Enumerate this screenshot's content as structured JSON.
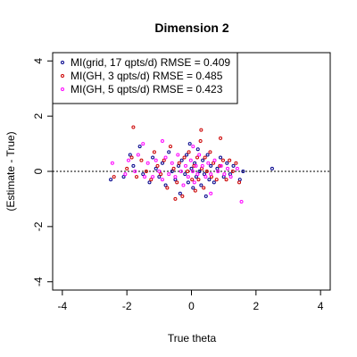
{
  "chart_data": {
    "type": "scatter",
    "title": "Dimension 2",
    "xlabel": "True theta",
    "ylabel": "(Estimate - True)",
    "xlim": [
      -4.3,
      4.3
    ],
    "ylim": [
      -4.3,
      4.3
    ],
    "xticks": [
      -4,
      -2,
      0,
      2,
      4
    ],
    "yticks": [
      -4,
      -2,
      0,
      2,
      4
    ],
    "grid": false,
    "legend_position": "top-left",
    "reference_line": {
      "y": 0,
      "style": "dotted"
    },
    "series": [
      {
        "name": "MI(grid, 17 qpts/d) RMSE = 0.409",
        "color": "#00008b",
        "points": [
          [
            -2.5,
            -0.3
          ],
          [
            -2.1,
            -0.2
          ],
          [
            -1.9,
            0.6
          ],
          [
            -1.8,
            0.2
          ],
          [
            -1.6,
            0.9
          ],
          [
            -1.5,
            -0.1
          ],
          [
            -1.3,
            -0.4
          ],
          [
            -1.2,
            0.5
          ],
          [
            -1.1,
            0.1
          ],
          [
            -1.0,
            -0.2
          ],
          [
            -0.9,
            0.3
          ],
          [
            -0.8,
            -0.5
          ],
          [
            -0.7,
            0.7
          ],
          [
            -0.6,
            0.0
          ],
          [
            -0.5,
            -0.3
          ],
          [
            -0.4,
            0.2
          ],
          [
            -0.35,
            -0.8
          ],
          [
            -0.3,
            0.4
          ],
          [
            -0.2,
            -0.1
          ],
          [
            -0.15,
            0.6
          ],
          [
            -0.1,
            -0.4
          ],
          [
            0.0,
            0.1
          ],
          [
            0.05,
            -0.6
          ],
          [
            0.1,
            0.3
          ],
          [
            0.15,
            -0.2
          ],
          [
            0.2,
            0.8
          ],
          [
            0.25,
            0.0
          ],
          [
            0.3,
            -0.5
          ],
          [
            0.35,
            0.4
          ],
          [
            0.4,
            -0.1
          ],
          [
            0.5,
            0.6
          ],
          [
            0.55,
            -0.3
          ],
          [
            0.6,
            0.2
          ],
          [
            0.7,
            -0.4
          ],
          [
            0.8,
            0.1
          ],
          [
            0.9,
            0.5
          ],
          [
            1.0,
            -0.2
          ],
          [
            1.1,
            0.3
          ],
          [
            1.2,
            -0.1
          ],
          [
            1.3,
            0.2
          ],
          [
            1.5,
            -0.3
          ],
          [
            1.6,
            0.0
          ],
          [
            2.5,
            0.1
          ],
          [
            -0.05,
            1.0
          ],
          [
            0.45,
            -0.9
          ]
        ]
      },
      {
        "name": "MI(GH, 3 qpts/d) RMSE = 0.485",
        "color": "#cc0000",
        "points": [
          [
            -2.4,
            -0.2
          ],
          [
            -2.0,
            0.1
          ],
          [
            -1.85,
            0.5
          ],
          [
            -1.7,
            -0.2
          ],
          [
            -1.55,
            0.4
          ],
          [
            -1.4,
            0.0
          ],
          [
            -1.25,
            -0.3
          ],
          [
            -1.15,
            0.7
          ],
          [
            -1.05,
            0.2
          ],
          [
            -0.95,
            -0.1
          ],
          [
            -0.85,
            0.4
          ],
          [
            -0.75,
            -0.6
          ],
          [
            -0.65,
            0.9
          ],
          [
            -0.55,
            0.1
          ],
          [
            -0.45,
            -0.4
          ],
          [
            -0.38,
            0.3
          ],
          [
            -0.28,
            -0.9
          ],
          [
            -0.22,
            0.5
          ],
          [
            -0.12,
            0.0
          ],
          [
            -0.08,
            0.7
          ],
          [
            0.02,
            -0.3
          ],
          [
            0.08,
            0.2
          ],
          [
            0.12,
            -0.7
          ],
          [
            0.18,
            0.5
          ],
          [
            0.22,
            -0.3
          ],
          [
            0.28,
            1.1
          ],
          [
            0.32,
            0.1
          ],
          [
            0.38,
            -0.6
          ],
          [
            0.42,
            0.5
          ],
          [
            0.48,
            0.0
          ],
          [
            0.58,
            0.7
          ],
          [
            0.62,
            -0.2
          ],
          [
            0.68,
            0.3
          ],
          [
            0.78,
            -0.3
          ],
          [
            0.88,
            0.2
          ],
          [
            0.98,
            0.4
          ],
          [
            1.08,
            -0.3
          ],
          [
            1.18,
            0.4
          ],
          [
            1.28,
            0.0
          ],
          [
            1.38,
            0.3
          ],
          [
            1.48,
            -0.4
          ],
          [
            -1.8,
            1.6
          ],
          [
            0.3,
            1.5
          ],
          [
            0.9,
            1.2
          ],
          [
            -0.5,
            -1.0
          ]
        ]
      },
      {
        "name": "MI(GH, 5 qpts/d) RMSE = 0.423",
        "color": "#ff00ff",
        "points": [
          [
            -2.45,
            0.3
          ],
          [
            -2.05,
            -0.1
          ],
          [
            -1.95,
            0.4
          ],
          [
            -1.75,
            0.0
          ],
          [
            -1.65,
            0.6
          ],
          [
            -1.45,
            -0.2
          ],
          [
            -1.35,
            0.3
          ],
          [
            -1.2,
            -0.2
          ],
          [
            -1.1,
            0.4
          ],
          [
            -1.0,
            0.0
          ],
          [
            -0.9,
            -0.3
          ],
          [
            -0.8,
            0.5
          ],
          [
            -0.7,
            -0.1
          ],
          [
            -0.6,
            0.3
          ],
          [
            -0.5,
            -0.2
          ],
          [
            -0.42,
            0.6
          ],
          [
            -0.32,
            0.0
          ],
          [
            -0.25,
            -0.5
          ],
          [
            -0.18,
            0.2
          ],
          [
            -0.1,
            -0.2
          ],
          [
            -0.02,
            0.4
          ],
          [
            0.04,
            0.0
          ],
          [
            0.09,
            -0.4
          ],
          [
            0.14,
            0.2
          ],
          [
            0.19,
            -0.1
          ],
          [
            0.24,
            0.6
          ],
          [
            0.34,
            0.2
          ],
          [
            0.44,
            -0.2
          ],
          [
            0.52,
            0.3
          ],
          [
            0.6,
            -0.1
          ],
          [
            0.72,
            0.4
          ],
          [
            0.82,
            0.0
          ],
          [
            0.92,
            0.2
          ],
          [
            1.02,
            -0.1
          ],
          [
            1.12,
            0.1
          ],
          [
            1.22,
            -0.2
          ],
          [
            1.42,
            0.1
          ],
          [
            1.55,
            -1.1
          ],
          [
            -0.9,
            1.1
          ],
          [
            0.05,
            0.9
          ],
          [
            0.6,
            -0.8
          ],
          [
            -1.5,
            1.0
          ]
        ]
      }
    ]
  }
}
